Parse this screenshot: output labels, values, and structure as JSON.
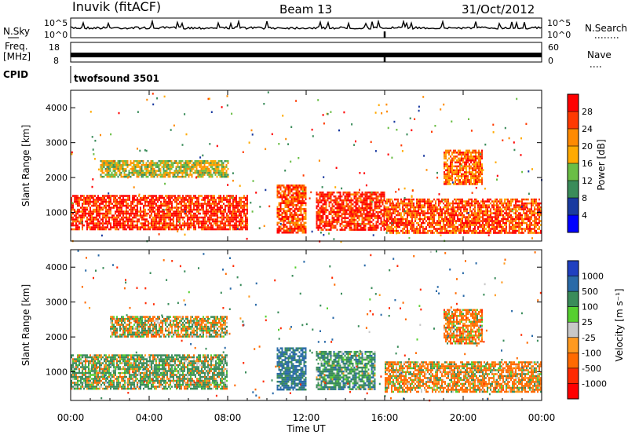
{
  "header": {
    "station": "Inuvik (fitACF)",
    "beam": "Beam 13",
    "date": "31/Oct/2012"
  },
  "noise_panel": {
    "left_label": "N.Sky",
    "left_ticks": [
      "10^5",
      "10^0"
    ],
    "right_ticks": [
      "10^5",
      "10^0"
    ],
    "right_label": "N.Search"
  },
  "freq_panel": {
    "left_label_1": "Freq.",
    "left_label_2": "[MHz]",
    "left_ticks": [
      "18",
      "8"
    ],
    "right_ticks": [
      "60",
      "0"
    ],
    "right_label": "Nave"
  },
  "cpid_panel": {
    "label": "CPID",
    "program": "twofsound 3501"
  },
  "power_colorbar": {
    "label": "Power [dB]",
    "ticks": [
      "28",
      "24",
      "20",
      "16",
      "12",
      "8",
      "4"
    ],
    "colors": [
      "#ff0000",
      "#ff3a00",
      "#ff8a00",
      "#ffaa00",
      "#6abe45",
      "#3a8c5a",
      "#1a3aa0",
      "#0000ff"
    ]
  },
  "velocity_colorbar": {
    "label": "Velocity [m s⁻¹]",
    "ticks": [
      "1000",
      "500",
      "100",
      "25",
      "-25",
      "-100",
      "-500",
      "-1000"
    ],
    "colors": [
      "#2040c0",
      "#2a6aa8",
      "#3a8c5a",
      "#56d030",
      "#c8c8c8",
      "#ff9a20",
      "#ff6a00",
      "#ff2a00",
      "#ff0000"
    ]
  },
  "x_axis": {
    "title": "Time UT",
    "ticks": [
      "00:00",
      "04:00",
      "08:00",
      "12:00",
      "16:00",
      "20:00",
      "00:00"
    ]
  },
  "chart_data": [
    {
      "type": "heatmap",
      "title": "Power",
      "xlabel": "Time UT",
      "ylabel": "Slant Range [km]",
      "xlim": [
        0,
        24
      ],
      "ylim": [
        180,
        4500
      ],
      "yticks": [
        1000,
        2000,
        3000,
        4000
      ],
      "colorbar": {
        "label": "Power [dB]",
        "ticks": [
          4,
          8,
          12,
          16,
          20,
          24,
          28
        ]
      },
      "regions": [
        {
          "t": [
            0,
            9.0
          ],
          "r": [
            500,
            1500
          ],
          "value_db": 26
        },
        {
          "t": [
            1.5,
            8.0
          ],
          "r": [
            2000,
            2500
          ],
          "value_db": 14
        },
        {
          "t": [
            10.5,
            12.0
          ],
          "r": [
            400,
            1800
          ],
          "value_db": 24
        },
        {
          "t": [
            12.5,
            16.0
          ],
          "r": [
            500,
            1600
          ],
          "value_db": 26
        },
        {
          "t": [
            16.0,
            24.0
          ],
          "r": [
            400,
            1400
          ],
          "value_db": 24
        },
        {
          "t": [
            19.0,
            21.0
          ],
          "r": [
            1800,
            2800
          ],
          "value_db": 22
        }
      ]
    },
    {
      "type": "heatmap",
      "title": "Velocity",
      "xlabel": "Time UT",
      "ylabel": "Slant Range [km]",
      "xlim": [
        0,
        24
      ],
      "ylim": [
        180,
        4500
      ],
      "yticks": [
        1000,
        2000,
        3000,
        4000
      ],
      "colorbar": {
        "label": "Velocity [m s⁻¹]",
        "ticks": [
          1000,
          500,
          100,
          25,
          -25,
          -100,
          -500,
          -1000
        ]
      },
      "regions": [
        {
          "t": [
            0,
            8.0
          ],
          "r": [
            500,
            1500
          ],
          "value_ms": 150
        },
        {
          "t": [
            2.0,
            8.0
          ],
          "r": [
            2000,
            2600
          ],
          "value_ms": 0
        },
        {
          "t": [
            10.5,
            12.0
          ],
          "r": [
            500,
            1700
          ],
          "value_ms": 600
        },
        {
          "t": [
            12.5,
            15.5
          ],
          "r": [
            500,
            1600
          ],
          "value_ms": 300
        },
        {
          "t": [
            16.0,
            24.0
          ],
          "r": [
            400,
            1300
          ],
          "value_ms": -150
        },
        {
          "t": [
            19.0,
            21.0
          ],
          "r": [
            1800,
            2800
          ],
          "value_ms": -200
        }
      ]
    }
  ]
}
